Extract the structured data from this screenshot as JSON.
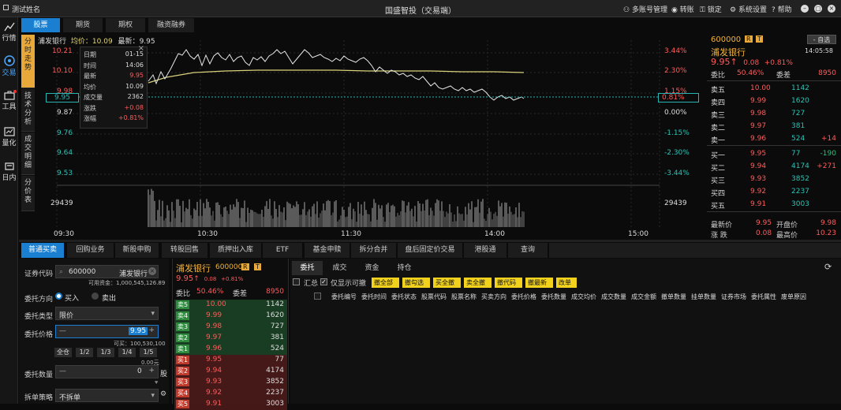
{
  "app": {
    "title": "国盛智投（交易端）",
    "user": "测试姓名",
    "title_buttons": [
      {
        "label": "多账号管理",
        "icon": "users-icon"
      },
      {
        "label": "转账",
        "icon": "transfer-icon"
      },
      {
        "label": "锁定",
        "icon": "lock-icon"
      },
      {
        "label": "系统设置",
        "icon": "gear-icon"
      },
      {
        "label": "帮助",
        "icon": "help-icon"
      }
    ]
  },
  "sidenav": [
    {
      "label": "行情",
      "icon": "market-chart-icon"
    },
    {
      "label": "交易",
      "icon": "trade-icon"
    },
    {
      "label": "工具",
      "icon": "toolbox-icon"
    },
    {
      "label": "量化",
      "icon": "quant-icon"
    },
    {
      "label": "日内",
      "icon": "intraday-icon"
    }
  ],
  "top_tabs": [
    "股票",
    "期货",
    "期权",
    "融资融券"
  ],
  "vertical_tabs": [
    "分时走势",
    "技术分析",
    "成交明细",
    "分价表"
  ],
  "chart_header": {
    "name": "浦发银行",
    "avg_label": "均价：",
    "avg": "10.09",
    "last_label": "最新：",
    "last": "9.95"
  },
  "tooltip": {
    "rows": [
      {
        "k": "日期",
        "v": "01-15"
      },
      {
        "k": "时间",
        "v": "14:06"
      },
      {
        "k": "最新",
        "v": "9.95"
      },
      {
        "k": "均价",
        "v": "10.09"
      },
      {
        "k": "成交量",
        "v": "2362"
      },
      {
        "k": "涨跌",
        "v": "+0.08"
      },
      {
        "k": "涨幅",
        "v": "+0.81%"
      }
    ],
    "close": "×"
  },
  "chart_data": {
    "type": "line",
    "x_ticks": [
      "09:30",
      "10:30",
      "11:30",
      "14:00",
      "15:00"
    ],
    "price_ticks": [
      "10.21",
      "10.10",
      "9.98",
      "9.87",
      "9.76",
      "9.64",
      "9.53"
    ],
    "pct_ticks": [
      "3.44%",
      "2.30%",
      "1.15%",
      "0.00%",
      "-1.15%",
      "-2.30%",
      "-3.44%"
    ],
    "left_marker": "9.95",
    "right_marker": "0.81%",
    "volume_ticks": [
      "29439"
    ],
    "ylim": [
      9.53,
      10.21
    ],
    "series": []
  },
  "quote": {
    "code": "600000",
    "badges": [
      "R",
      "T"
    ],
    "add_fav": "- 自选",
    "name": "浦发银行",
    "time": "14:05:58",
    "price": "9.95",
    "arrow": "↑",
    "change": "0.08",
    "pct": "+0.81%",
    "weibi_label": "委比",
    "weibi": "50.46%",
    "weicha_label": "委差",
    "weicha": "8950",
    "asks": [
      {
        "label": "卖五",
        "price": "10.00",
        "vol": "1142",
        "chg": ""
      },
      {
        "label": "卖四",
        "price": "9.99",
        "vol": "1620",
        "chg": ""
      },
      {
        "label": "卖三",
        "price": "9.98",
        "vol": "727",
        "chg": ""
      },
      {
        "label": "卖二",
        "price": "9.97",
        "vol": "381",
        "chg": ""
      },
      {
        "label": "卖一",
        "price": "9.96",
        "vol": "524",
        "chg": "+14"
      }
    ],
    "bids": [
      {
        "label": "买一",
        "price": "9.95",
        "vol": "77",
        "chg": "-190"
      },
      {
        "label": "买二",
        "price": "9.94",
        "vol": "4174",
        "chg": "+271"
      },
      {
        "label": "买三",
        "price": "9.93",
        "vol": "3852",
        "chg": ""
      },
      {
        "label": "买四",
        "price": "9.92",
        "vol": "2237",
        "chg": ""
      },
      {
        "label": "买五",
        "price": "9.91",
        "vol": "3003",
        "chg": ""
      }
    ],
    "footer": [
      {
        "k": "最新价",
        "v": "9.95",
        "k2": "开盘价",
        "v2": "9.98"
      },
      {
        "k": "涨 跌",
        "v": "0.08",
        "k2": "最高价",
        "v2": "10.23"
      }
    ]
  },
  "bottom_tabs": [
    "普通买卖",
    "回购业务",
    "新股申购",
    "转股回售",
    "质押出入库",
    "ETF",
    "基金申赎",
    "拆分合并",
    "盘后固定价交易",
    "港股通",
    "查询"
  ],
  "order_form": {
    "code_label": "证券代码",
    "code": "600000",
    "code_name": "浦发银行",
    "funds": "可用资金：1,000,545,126.89",
    "dir_label": "委托方向",
    "buy": "买入",
    "sell": "卖出",
    "type_label": "委托类型",
    "type": "限价",
    "price_label": "委托价格",
    "price": "9.95",
    "can_buy": "可买：100,530,100",
    "fractions": [
      "全仓",
      "1/2",
      "1/3",
      "1/4",
      "1/5"
    ],
    "qty_label": "委托数量",
    "qty": "0",
    "unit": "股",
    "amount": "0.00元",
    "split_label": "拆单策略",
    "split": "不拆单"
  },
  "orderbook": {
    "name": "浦发银行",
    "code": "600000",
    "badges": [
      "R",
      "T"
    ],
    "price": "9.95",
    "arrow": "↑",
    "change": "0.08",
    "pct": "+0.81%",
    "weibi_label": "委比",
    "weibi": "50.46%",
    "weicha_label": "委差",
    "weicha": "8950",
    "asks": [
      {
        "label": "卖5",
        "price": "10.00",
        "vol": "1142"
      },
      {
        "label": "卖4",
        "price": "9.99",
        "vol": "1620"
      },
      {
        "label": "卖3",
        "price": "9.98",
        "vol": "727"
      },
      {
        "label": "卖2",
        "price": "9.97",
        "vol": "381"
      },
      {
        "label": "卖1",
        "price": "9.96",
        "vol": "524"
      }
    ],
    "bids": [
      {
        "label": "买1",
        "price": "9.95",
        "vol": "77"
      },
      {
        "label": "买2",
        "price": "9.94",
        "vol": "4174"
      },
      {
        "label": "买3",
        "price": "9.93",
        "vol": "3852"
      },
      {
        "label": "买4",
        "price": "9.92",
        "vol": "2237"
      },
      {
        "label": "买5",
        "price": "9.91",
        "vol": "3003"
      }
    ]
  },
  "orders": {
    "tabs": [
      "委托",
      "成交",
      "资金",
      "持仓"
    ],
    "summary_label": "汇总",
    "cancellable_label": "仅显示可撤",
    "buttons": [
      "撤全部",
      "撤勾选",
      "买全撤",
      "卖全撤",
      "撤代码",
      "撤最新",
      "改单"
    ],
    "columns": [
      "委托编号",
      "委托时间",
      "委托状态",
      "股票代码",
      "股票名称",
      "买卖方向",
      "委托价格",
      "委托数量",
      "成交均价",
      "成交数量",
      "成交金额",
      "撤单数量",
      "挂单数量",
      "证券市场",
      "委托属性",
      "废单原因"
    ]
  }
}
